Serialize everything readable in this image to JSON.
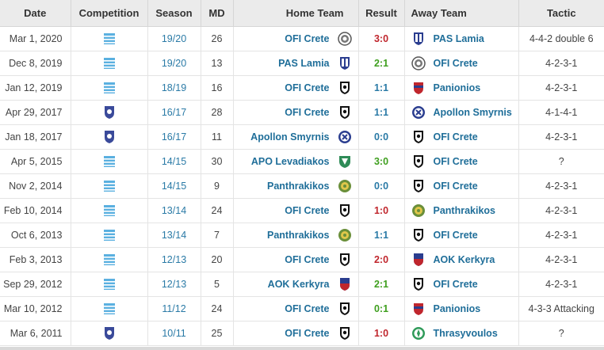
{
  "headers": {
    "date": "Date",
    "competition": "Competition",
    "season": "Season",
    "md": "MD",
    "home": "Home Team",
    "result": "Result",
    "away": "Away Team",
    "tactic": "Tactic"
  },
  "colors": {
    "win": "#3f9f1f",
    "loss": "#c0262d",
    "draw": "#2a7aa6",
    "link": "#1f6e99"
  },
  "matches": [
    {
      "date": "Mar 1, 2020",
      "comp": "super-league-icon",
      "season": "19/20",
      "md": "26",
      "home": "OFI Crete",
      "home_crest": "ofi-crete-crest",
      "result": "3:0",
      "outcome": "loss",
      "away": "PAS Lamia",
      "away_crest": "pas-lamia-crest",
      "tactic": "4-4-2 double 6"
    },
    {
      "date": "Dec 8, 2019",
      "comp": "super-league-icon",
      "season": "19/20",
      "md": "13",
      "home": "PAS Lamia",
      "home_crest": "pas-lamia-crest",
      "result": "2:1",
      "outcome": "win",
      "away": "OFI Crete",
      "away_crest": "ofi-crete-crest",
      "tactic": "4-2-3-1"
    },
    {
      "date": "Jan 12, 2019",
      "comp": "super-league-icon",
      "season": "18/19",
      "md": "16",
      "home": "OFI Crete",
      "home_crest": "ofi-crete-crest",
      "result": "1:1",
      "outcome": "draw",
      "away": "Panionios",
      "away_crest": "panionios-crest",
      "tactic": "4-2-3-1"
    },
    {
      "date": "Apr 29, 2017",
      "comp": "football-league-icon",
      "season": "16/17",
      "md": "28",
      "home": "OFI Crete",
      "home_crest": "ofi-crete-crest",
      "result": "1:1",
      "outcome": "draw",
      "away": "Apollon Smyrnis",
      "away_crest": "apollon-smyrnis-crest",
      "tactic": "4-1-4-1"
    },
    {
      "date": "Jan 18, 2017",
      "comp": "football-league-icon",
      "season": "16/17",
      "md": "11",
      "home": "Apollon Smyrnis",
      "home_crest": "apollon-smyrnis-crest",
      "result": "0:0",
      "outcome": "draw",
      "away": "OFI Crete",
      "away_crest": "ofi-crete-crest",
      "tactic": "4-2-3-1"
    },
    {
      "date": "Apr 5, 2015",
      "comp": "super-league-icon",
      "season": "14/15",
      "md": "30",
      "home": "APO Levadiakos",
      "home_crest": "levadiakos-crest",
      "result": "3:0",
      "outcome": "win",
      "away": "OFI Crete",
      "away_crest": "ofi-crete-crest",
      "tactic": "?"
    },
    {
      "date": "Nov 2, 2014",
      "comp": "super-league-icon",
      "season": "14/15",
      "md": "9",
      "home": "Panthrakikos",
      "home_crest": "panthrakikos-crest",
      "result": "0:0",
      "outcome": "draw",
      "away": "OFI Crete",
      "away_crest": "ofi-crete-crest",
      "tactic": "4-2-3-1"
    },
    {
      "date": "Feb 10, 2014",
      "comp": "super-league-icon",
      "season": "13/14",
      "md": "24",
      "home": "OFI Crete",
      "home_crest": "ofi-crete-crest",
      "result": "1:0",
      "outcome": "loss",
      "away": "Panthrakikos",
      "away_crest": "panthrakikos-crest",
      "tactic": "4-2-3-1"
    },
    {
      "date": "Oct 6, 2013",
      "comp": "super-league-icon",
      "season": "13/14",
      "md": "7",
      "home": "Panthrakikos",
      "home_crest": "panthrakikos-crest",
      "result": "1:1",
      "outcome": "draw",
      "away": "OFI Crete",
      "away_crest": "ofi-crete-crest",
      "tactic": "4-2-3-1"
    },
    {
      "date": "Feb 3, 2013",
      "comp": "super-league-icon",
      "season": "12/13",
      "md": "20",
      "home": "OFI Crete",
      "home_crest": "ofi-crete-crest",
      "result": "2:0",
      "outcome": "loss",
      "away": "AOK Kerkyra",
      "away_crest": "kerkyra-crest",
      "tactic": "4-2-3-1"
    },
    {
      "date": "Sep 29, 2012",
      "comp": "super-league-icon",
      "season": "12/13",
      "md": "5",
      "home": "AOK Kerkyra",
      "home_crest": "kerkyra-crest",
      "result": "2:1",
      "outcome": "win",
      "away": "OFI Crete",
      "away_crest": "ofi-crete-crest",
      "tactic": "4-2-3-1"
    },
    {
      "date": "Mar 10, 2012",
      "comp": "super-league-icon",
      "season": "11/12",
      "md": "24",
      "home": "OFI Crete",
      "home_crest": "ofi-crete-crest",
      "result": "0:1",
      "outcome": "win",
      "away": "Panionios",
      "away_crest": "panionios-crest",
      "tactic": "4-3-3 Attacking"
    },
    {
      "date": "Mar 6, 2011",
      "comp": "football-league-icon",
      "season": "10/11",
      "md": "25",
      "home": "OFI Crete",
      "home_crest": "ofi-crete-crest",
      "result": "1:0",
      "outcome": "loss",
      "away": "Thrasyvoulos",
      "away_crest": "thrasyvoulos-crest",
      "tactic": "?"
    }
  ]
}
